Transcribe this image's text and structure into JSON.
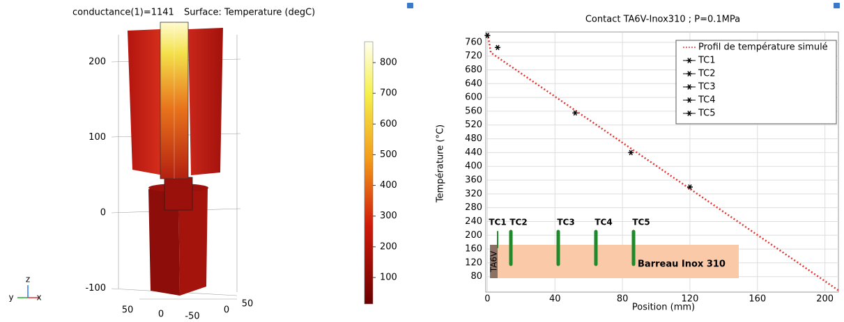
{
  "chart_data": [
    {
      "type": "surface3d",
      "title": "conductance(1)=1141",
      "subtitle": "Surface: Temperature (degC)",
      "zticks": [
        -100,
        0,
        100,
        200
      ],
      "xticks": [
        50,
        0,
        -50
      ],
      "yticks": [
        0,
        50
      ],
      "axis_labels": [
        "z",
        "y",
        "x"
      ],
      "clim": [
        14,
        868
      ],
      "cticks": [
        100,
        200,
        300,
        400,
        500,
        600,
        700,
        800
      ]
    },
    {
      "type": "line",
      "title": "Contact TA6V-Inox310 ; P=0.1MPa",
      "xlabel": "Position (mm)",
      "ylabel": "Température (°C)",
      "xlim": [
        -1,
        208
      ],
      "ylim": [
        35,
        790
      ],
      "xticks": [
        0,
        40,
        80,
        120,
        160,
        200
      ],
      "yticks": [
        80,
        120,
        160,
        200,
        240,
        280,
        320,
        360,
        400,
        440,
        480,
        520,
        560,
        600,
        640,
        680,
        720,
        760
      ],
      "grid": true,
      "legend": "upper right",
      "series": [
        {
          "name": "Profil de température simulé",
          "color": "#e8312f",
          "style": "dotted",
          "x": [
            0,
            1,
            2,
            208
          ],
          "values": [
            785,
            760,
            730,
            40
          ]
        },
        {
          "name": "TC1",
          "color": "#000000",
          "marker": "star",
          "x": [
            0
          ],
          "values": [
            780
          ]
        },
        {
          "name": "TC2",
          "color": "#000000",
          "marker": "star",
          "x": [
            6
          ],
          "values": [
            745
          ]
        },
        {
          "name": "TC3",
          "color": "#000000",
          "marker": "star",
          "x": [
            52
          ],
          "values": [
            555
          ]
        },
        {
          "name": "TC4",
          "color": "#000000",
          "marker": "star",
          "x": [
            85
          ],
          "values": [
            440
          ]
        },
        {
          "name": "TC5",
          "color": "#000000",
          "marker": "star",
          "x": [
            120
          ],
          "values": [
            340
          ]
        }
      ],
      "annotations": [
        "TC1",
        "TC2",
        "TC3",
        "TC4",
        "TC5",
        "TA6V",
        "Barreau Inox 310"
      ]
    }
  ]
}
